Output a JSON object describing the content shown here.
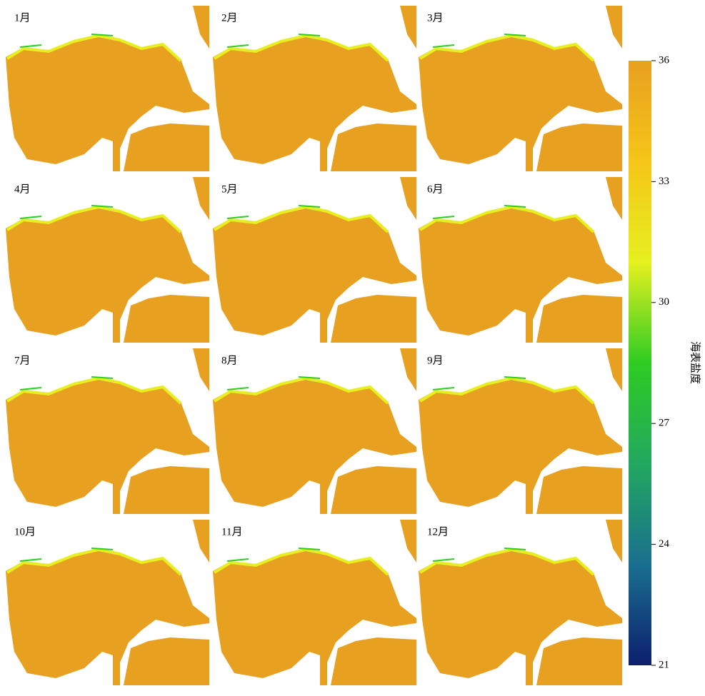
{
  "panels": [
    {
      "label": "1月"
    },
    {
      "label": "2月"
    },
    {
      "label": "3月"
    },
    {
      "label": "4月"
    },
    {
      "label": "5月"
    },
    {
      "label": "6月"
    },
    {
      "label": "7月"
    },
    {
      "label": "8月"
    },
    {
      "label": "9月"
    },
    {
      "label": "10月"
    },
    {
      "label": "11月"
    },
    {
      "label": "12月"
    }
  ],
  "colorbar": {
    "label": "海表盐度",
    "lim": [
      21,
      36
    ],
    "ticks": [
      21,
      24,
      27,
      30,
      33,
      36
    ],
    "colors": [
      "#0d1f6e",
      "#1a6f8f",
      "#22a860",
      "#2ecc22",
      "#e6f020",
      "#f5c518",
      "#e8a020"
    ]
  }
}
